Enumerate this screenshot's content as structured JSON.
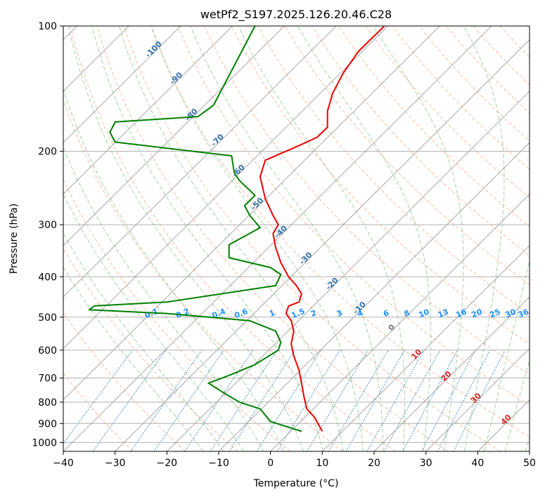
{
  "chart_data": {
    "type": "line",
    "title": "wetPf2_S197.2025.126.20.46.C28",
    "xlabel": "Temperature (°C)",
    "ylabel": "Pressure (hPa)",
    "xlim": [
      -40,
      50
    ],
    "ylim": [
      1050,
      100
    ],
    "y_scale": "log",
    "grid": true,
    "x_ticks": [
      "−40",
      "−30",
      "−20",
      "−10",
      "0",
      "10",
      "20",
      "30",
      "40",
      "50"
    ],
    "y_ticks": [
      "100",
      "200",
      "300",
      "400",
      "500",
      "600",
      "700",
      "800",
      "900",
      "1000"
    ],
    "colors": {
      "temperature": "#ee0000",
      "dewpoint": "#008000",
      "mixing_ratio": "#1f77b4",
      "dry_adiabat": "#f4a582",
      "moist_adiabat": "#7fbf7f",
      "isotherm": "#999999",
      "isotherm_label_neg": "#2f6ea8",
      "isotherm_label_pos": "#d62728",
      "mixing_label": "#1e90ff"
    },
    "series": [
      {
        "key": "temperature",
        "x": [
          10.0,
          8.5,
          7.0,
          6.5,
          6.0,
          5.5,
          4.5,
          4.0,
          4.5,
          4.0,
          3.0,
          3.5,
          5.5,
          6.0,
          5.0,
          3.5,
          2.0,
          1.0,
          0.5,
          1.5,
          0.5,
          -1.0,
          -2.0,
          -1.0,
          5.0,
          9.0,
          11.0,
          11.0,
          12.0,
          14.0,
          17.0,
          22.0
        ],
        "y": [
          940,
          870,
          830,
          780,
          720,
          670,
          620,
          580,
          540,
          510,
          490,
          470,
          460,
          440,
          420,
          400,
          370,
          340,
          315,
          300,
          285,
          260,
          230,
          210,
          195,
          185,
          175,
          160,
          145,
          130,
          115,
          100
        ]
      },
      {
        "key": "dewpoint",
        "x": [
          6.0,
          0.0,
          -2.0,
          -6.0,
          -9.0,
          -12.0,
          -8.0,
          -3.0,
          1.5,
          2.0,
          1.0,
          -4.0,
          -20.0,
          -35.0,
          -34.0,
          -20.0,
          1.0,
          2.0,
          0.0,
          -8.0,
          -8.0,
          -2.0,
          -4.0,
          -5.0,
          -3.0,
          -6.0,
          -7.0,
          -7.5,
          -30.0,
          -31.0,
          -30.0,
          -14.0,
          -11.0,
          -3.0
        ],
        "y": [
          940,
          890,
          830,
          800,
          760,
          720,
          690,
          650,
          600,
          575,
          540,
          510,
          490,
          480,
          470,
          460,
          420,
          395,
          380,
          360,
          335,
          305,
          285,
          270,
          255,
          235,
          225,
          205,
          190,
          180,
          170,
          165,
          155,
          100
        ]
      }
    ],
    "isotherm_labels": [
      {
        "value": "-100",
        "t": -100,
        "p": 115
      },
      {
        "value": "-90",
        "t": -90,
        "p": 135
      },
      {
        "value": "-80",
        "t": -80,
        "p": 165
      },
      {
        "value": "-70",
        "t": -70,
        "p": 190
      },
      {
        "value": "-60",
        "t": -60,
        "p": 225
      },
      {
        "value": "-50",
        "t": -50,
        "p": 270
      },
      {
        "value": "-40",
        "t": -40,
        "p": 315
      },
      {
        "value": "-30",
        "t": -30,
        "p": 365
      },
      {
        "value": "-20",
        "t": -20,
        "p": 420
      },
      {
        "value": "-10",
        "t": -10,
        "p": 480
      },
      {
        "value": "0",
        "t": 0,
        "p": 535
      },
      {
        "value": "10",
        "t": 10,
        "p": 620
      },
      {
        "value": "20",
        "t": 20,
        "p": 700
      },
      {
        "value": "30",
        "t": 30,
        "p": 790
      },
      {
        "value": "40",
        "t": 40,
        "p": 890
      }
    ],
    "mixing_ratio_labels": [
      {
        "value": "0.1",
        "t": -22.8
      },
      {
        "value": "0.2",
        "t": -16.8
      },
      {
        "value": "0.4",
        "t": -9.8
      },
      {
        "value": "0.6",
        "t": -5.5
      },
      {
        "value": "1",
        "t": 0.5
      },
      {
        "value": "1.5",
        "t": 5.5
      },
      {
        "value": "2",
        "t": 8.5
      },
      {
        "value": "3",
        "t": 13.5
      },
      {
        "value": "4",
        "t": 17.5
      },
      {
        "value": "6",
        "t": 22.5
      },
      {
        "value": "8",
        "t": 26.5
      },
      {
        "value": "10",
        "t": 29.8
      },
      {
        "value": "13",
        "t": 33.5
      },
      {
        "value": "16",
        "t": 37.0
      },
      {
        "value": "20",
        "t": 40.0
      },
      {
        "value": "25",
        "t": 43.5
      },
      {
        "value": "30",
        "t": 46.5
      },
      {
        "value": "36",
        "t": 49.0
      }
    ],
    "mixing_ratio_label_pressure": 500
  }
}
